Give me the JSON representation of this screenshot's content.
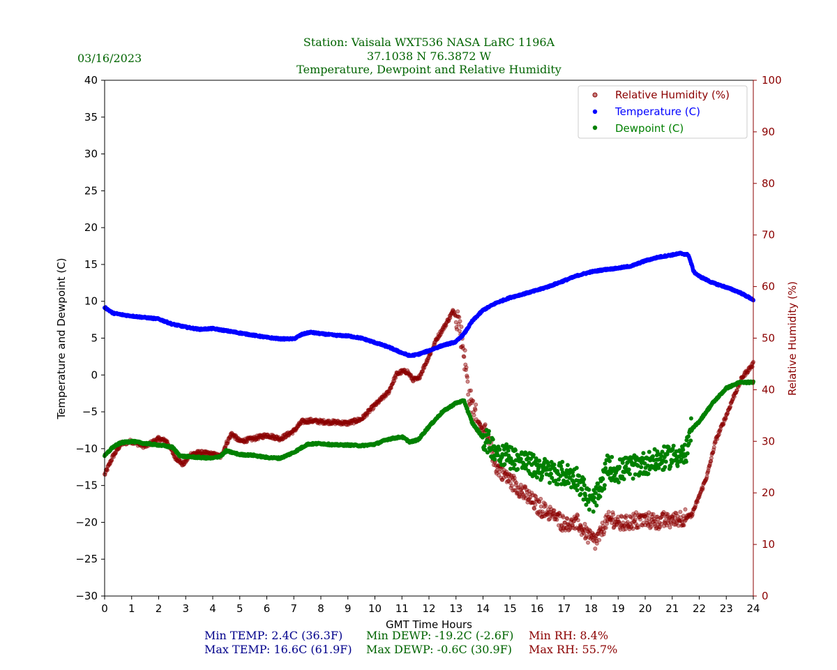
{
  "header": {
    "date": "03/16/2023",
    "title_lines": [
      "Station:  Vaisala WXT536  NASA LaRC 1196A",
      "37.1038 N 76.3872 W",
      "Temperature, Dewpoint and Relative Humidity"
    ]
  },
  "footer": {
    "min_temp": "Min TEMP: 2.4C (36.3F)",
    "max_temp": "Max TEMP: 16.6C (61.9F)",
    "min_dewp": "Min DEWP: -19.2C (-2.6F)",
    "max_dewp": "Max DEWP: -0.6C (30.9F)",
    "min_rh": "Min RH: 8.4%",
    "max_rh": "Max RH: 55.7%"
  },
  "colors": {
    "temperature": "#0000ff",
    "dewpoint": "#008000",
    "rh": "#8b0000",
    "header_text": "#006400",
    "footer_temp": "#00008b",
    "footer_dewp": "#006400",
    "footer_rh": "#8b0000"
  },
  "chart_data": {
    "type": "scatter",
    "title": "Temperature, Dewpoint and Relative Humidity",
    "xlabel": "GMT Time Hours",
    "ylabel": "Temperature and Dewpoint (C)",
    "y2label": "Relative Humidity (%)",
    "xlim": [
      0,
      24
    ],
    "ylim": [
      -30,
      40
    ],
    "y2lim": [
      0,
      100
    ],
    "xticks": [
      "0",
      "1",
      "2",
      "3",
      "4",
      "5",
      "6",
      "7",
      "8",
      "9",
      "10",
      "11",
      "12",
      "13",
      "14",
      "15",
      "16",
      "17",
      "18",
      "19",
      "20",
      "21",
      "22",
      "23",
      "24"
    ],
    "yticks": [
      "−30",
      "−25",
      "−20",
      "−15",
      "−10",
      "−5",
      "0",
      "5",
      "10",
      "15",
      "20",
      "25",
      "30",
      "35",
      "40"
    ],
    "y2ticks": [
      "0",
      "10",
      "20",
      "30",
      "40",
      "50",
      "60",
      "70",
      "80",
      "90",
      "100"
    ],
    "legend": [
      "Relative Humidity (%)",
      "Temperature (C)",
      "Dewpoint (C)"
    ],
    "legend_position": "top-right",
    "series": [
      {
        "name": "Temperature (C)",
        "axis": "left",
        "noise": 0.1,
        "x": [
          0,
          0.3,
          0.6,
          1,
          1.5,
          2,
          2.5,
          3,
          3.5,
          4,
          4.5,
          5,
          5.5,
          6,
          6.5,
          7,
          7.3,
          7.6,
          8,
          8.5,
          9,
          9.5,
          10,
          10.5,
          11,
          11.3,
          11.6,
          12,
          12.5,
          13,
          13.3,
          13.6,
          14,
          14.5,
          15,
          15.5,
          16,
          16.5,
          17,
          17.5,
          18,
          18.5,
          19,
          19.5,
          20,
          20.5,
          21,
          21.3,
          21.6,
          21.8,
          22,
          22.5,
          23,
          23.5,
          24
        ],
        "y": [
          9.2,
          8.4,
          8.2,
          8.0,
          7.8,
          7.6,
          6.9,
          6.5,
          6.2,
          6.3,
          6.0,
          5.7,
          5.4,
          5.1,
          4.9,
          4.9,
          5.5,
          5.8,
          5.6,
          5.4,
          5.3,
          5.0,
          4.4,
          3.8,
          3.0,
          2.6,
          2.8,
          3.3,
          4.0,
          4.5,
          5.6,
          7.3,
          8.8,
          9.8,
          10.5,
          11.0,
          11.5,
          12.1,
          12.8,
          13.5,
          14.0,
          14.3,
          14.5,
          14.8,
          15.5,
          16.0,
          16.3,
          16.5,
          16.3,
          14.0,
          13.4,
          12.5,
          11.9,
          11.2,
          10.2
        ]
      },
      {
        "name": "Dewpoint (C)",
        "axis": "left",
        "noise": 0.12,
        "x": [
          0,
          0.3,
          0.6,
          1,
          1.5,
          2,
          2.5,
          2.8,
          3.5,
          4,
          4.3,
          4.5,
          5,
          5.5,
          6,
          6.5,
          7,
          7.5,
          8,
          8.5,
          9,
          9.5,
          10,
          10.5,
          11,
          11.3,
          11.6,
          12,
          12.5,
          13,
          13.3,
          13.6,
          14,
          14.5,
          15,
          15.5,
          16,
          16.5,
          17,
          17.5,
          18,
          18.3,
          18.6,
          19,
          19.5,
          20,
          20.5,
          21,
          21.5,
          21.7,
          22,
          22.5,
          23,
          23.5,
          24
        ],
        "y": [
          -11.0,
          -9.8,
          -9.2,
          -9.0,
          -9.3,
          -9.5,
          -9.8,
          -11.0,
          -11.2,
          -11.3,
          -11.0,
          -10.3,
          -10.8,
          -10.9,
          -11.2,
          -11.3,
          -10.5,
          -9.4,
          -9.3,
          -9.5,
          -9.5,
          -9.6,
          -9.4,
          -8.7,
          -8.4,
          -9.1,
          -8.8,
          -7.0,
          -5.0,
          -3.8,
          -3.5,
          -6.5,
          -8.5,
          -10.3,
          -11.0,
          -11.8,
          -12.5,
          -13.2,
          -13.5,
          -14.0,
          -17.5,
          -16.0,
          -12.5,
          -13.0,
          -12.5,
          -12.0,
          -11.5,
          -11.0,
          -10.8,
          -7.5,
          -6.3,
          -3.8,
          -1.8,
          -1.0,
          -1.0
        ],
        "spread": [
          [
            14.0,
            21.7,
            1.6
          ]
        ]
      },
      {
        "name": "Relative Humidity (%)",
        "axis": "right",
        "noise": 0.4,
        "x": [
          0,
          0.3,
          0.6,
          1,
          1.5,
          2,
          2.3,
          2.6,
          2.9,
          3.2,
          3.5,
          4,
          4.3,
          4.5,
          4.7,
          5,
          5.5,
          6,
          6.5,
          7,
          7.3,
          7.6,
          8,
          8.5,
          9,
          9.5,
          10,
          10.5,
          10.8,
          11,
          11.2,
          11.4,
          11.6,
          12,
          12.3,
          12.6,
          12.9,
          13.1,
          13.3,
          13.5,
          13.8,
          14.1,
          14.5,
          15,
          15.5,
          16,
          16.5,
          17,
          17.5,
          18,
          18.2,
          18.5,
          18.8,
          19,
          19.5,
          20,
          20.5,
          21,
          21.4,
          21.7,
          21.9,
          22.3,
          22.6,
          23,
          23.3,
          23.6,
          24
        ],
        "y": [
          23.5,
          27,
          29.5,
          30,
          29,
          30.5,
          30,
          27,
          25.5,
          27.5,
          27.8,
          27.5,
          27,
          29.5,
          31.5,
          30,
          30.5,
          31.2,
          30.5,
          32,
          33.8,
          34,
          33.8,
          33.7,
          33.5,
          34.3,
          37,
          39.5,
          43,
          43.5,
          43.5,
          42,
          42,
          46.5,
          50,
          52.5,
          55.3,
          53.8,
          47,
          38,
          34,
          31.5,
          25,
          22.5,
          20,
          17.5,
          16,
          14.2,
          14,
          11.2,
          10.5,
          14,
          15,
          14,
          14.5,
          14.8,
          14.5,
          14.8,
          15.2,
          15.5,
          18,
          23.5,
          30,
          35,
          39,
          42.5,
          45
        ],
        "spread": [
          [
            13.0,
            13.8,
            2.5
          ],
          [
            14.0,
            21.5,
            1.5
          ]
        ]
      }
    ]
  }
}
